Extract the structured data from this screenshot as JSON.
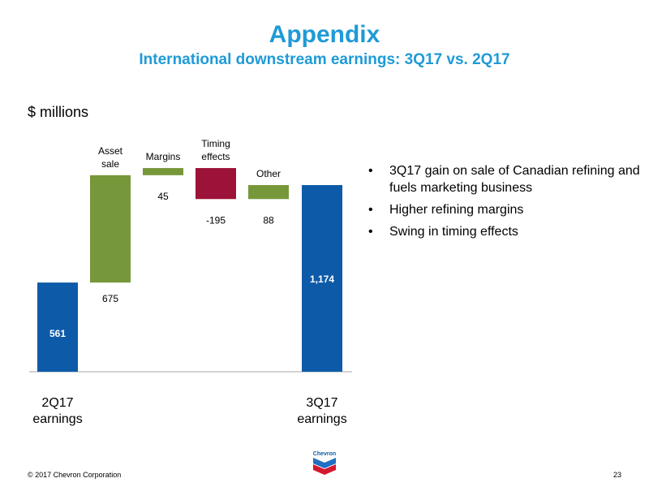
{
  "slide": {
    "title": "Appendix",
    "subtitle": "International downstream earnings: 3Q17 vs. 2Q17",
    "unit_label": "$ millions",
    "footer": "© 2017 Chevron Corporation",
    "page_number": "23",
    "logo_text": "Chevron",
    "bullets": [
      "3Q17 gain on sale of Canadian refining and fuels marketing business",
      "Higher refining margins",
      "Swing in timing effects"
    ]
  },
  "colors": {
    "title": "#1f9ad6",
    "total_bar": "#0d5ba8",
    "increase_bar": "#76983a",
    "decrease_bar": "#9c1238"
  },
  "chart_data": {
    "type": "bar",
    "subtype": "waterfall",
    "categories": [
      [
        "2Q17",
        "earnings"
      ],
      [
        "Asset",
        "sale"
      ],
      [
        "Margins"
      ],
      [
        "Timing",
        "effects"
      ],
      [
        "Other"
      ],
      [
        "3Q17",
        "earnings"
      ]
    ],
    "values": [
      561,
      675,
      45,
      -195,
      88,
      1174
    ],
    "value_labels": [
      "561",
      "675",
      "45",
      "-195",
      "88",
      "1,174"
    ],
    "kinds": [
      "total",
      "delta",
      "delta",
      "delta",
      "delta",
      "total"
    ],
    "ylim": [
      0,
      1400
    ],
    "grid": false
  }
}
